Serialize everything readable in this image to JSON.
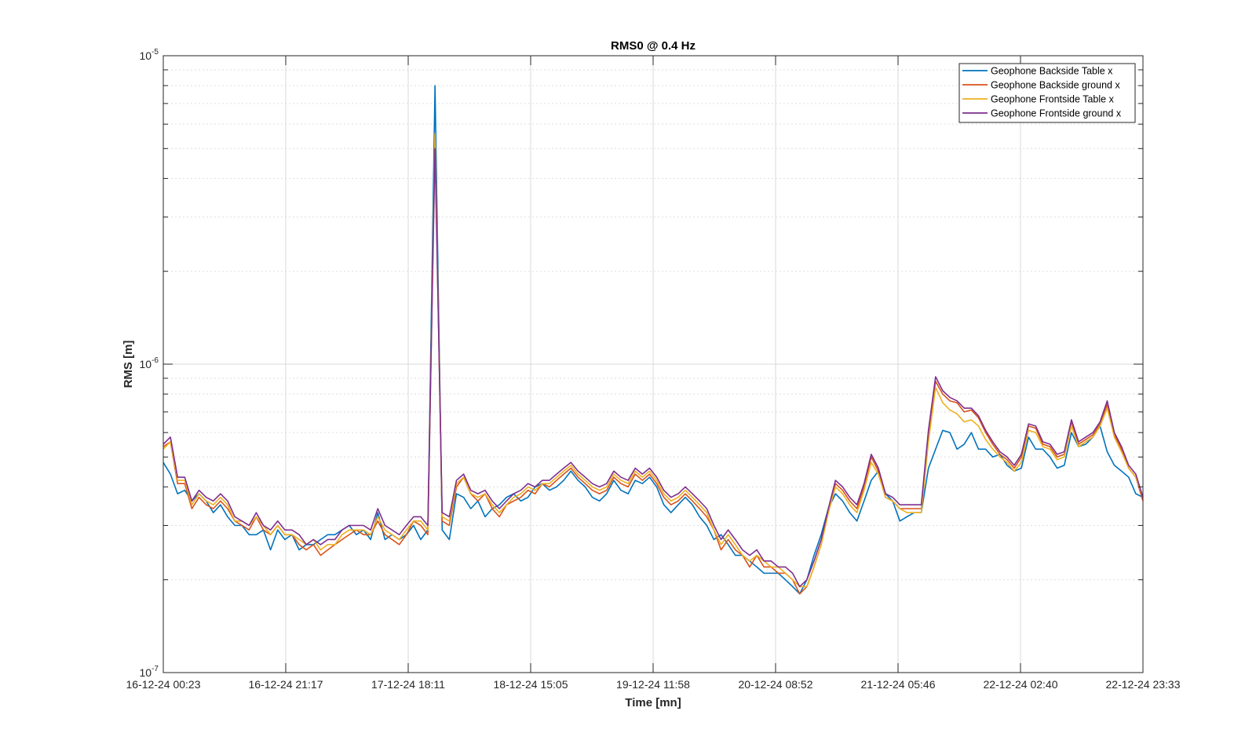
{
  "chart_data": {
    "type": "line",
    "title": "RMS0 @ 0.4 Hz",
    "xlabel": "Time [mn]",
    "ylabel": "RMS [m]",
    "yscale": "log",
    "ylim": [
      1e-07,
      1e-05
    ],
    "y_ticks": [
      {
        "value": 1e-07,
        "base": "10",
        "exp": "-7"
      },
      {
        "value": 1e-06,
        "base": "10",
        "exp": "-6"
      },
      {
        "value": 1e-05,
        "base": "10",
        "exp": "-5"
      }
    ],
    "x_ticks": [
      "16-12-24 00:23",
      "16-12-24 21:17",
      "17-12-24 18:11",
      "18-12-24 15:05",
      "19-12-24 11:58",
      "20-12-24 08:52",
      "21-12-24 05:46",
      "22-12-24 02:40",
      "22-12-24 23:33"
    ],
    "grid": true,
    "legend_position": "top-right",
    "series": [
      {
        "name": "Geophone Backside Table x",
        "color": "#0072BD",
        "values": [
          4.8e-07,
          4.4e-07,
          3.8e-07,
          3.9e-07,
          3.6e-07,
          3.8e-07,
          3.6e-07,
          3.3e-07,
          3.5e-07,
          3.2e-07,
          3e-07,
          3e-07,
          2.8e-07,
          2.8e-07,
          2.9e-07,
          2.5e-07,
          2.9e-07,
          2.7e-07,
          2.8e-07,
          2.5e-07,
          2.6e-07,
          2.6e-07,
          2.7e-07,
          2.8e-07,
          2.8e-07,
          2.9e-07,
          3e-07,
          2.8e-07,
          2.9e-07,
          2.7e-07,
          3.3e-07,
          2.7e-07,
          2.8e-07,
          2.7e-07,
          2.8e-07,
          3e-07,
          2.7e-07,
          2.9e-07,
          8e-06,
          2.9e-07,
          2.7e-07,
          3.8e-07,
          3.7e-07,
          3.4e-07,
          3.6e-07,
          3.2e-07,
          3.4e-07,
          3.5e-07,
          3.7e-07,
          3.8e-07,
          3.6e-07,
          3.7e-07,
          4e-07,
          4.1e-07,
          3.9e-07,
          4e-07,
          4.2e-07,
          4.5e-07,
          4.2e-07,
          4e-07,
          3.7e-07,
          3.6e-07,
          3.8e-07,
          4.2e-07,
          3.9e-07,
          3.8e-07,
          4.2e-07,
          4.1e-07,
          4.3e-07,
          4e-07,
          3.5e-07,
          3.3e-07,
          3.5e-07,
          3.7e-07,
          3.5e-07,
          3.2e-07,
          3e-07,
          2.7e-07,
          2.8e-07,
          2.6e-07,
          2.4e-07,
          2.4e-07,
          2.3e-07,
          2.2e-07,
          2.1e-07,
          2.1e-07,
          2.1e-07,
          2e-07,
          1.9e-07,
          1.8e-07,
          2e-07,
          2.4e-07,
          2.8e-07,
          3.4e-07,
          3.8e-07,
          3.6e-07,
          3.3e-07,
          3.1e-07,
          3.6e-07,
          4.2e-07,
          4.5e-07,
          3.8e-07,
          3.6e-07,
          3.1e-07,
          3.2e-07,
          3.3e-07,
          3.3e-07,
          4.6e-07,
          5.3e-07,
          6.1e-07,
          6e-07,
          5.3e-07,
          5.5e-07,
          6e-07,
          5.3e-07,
          5.3e-07,
          5e-07,
          5.1e-07,
          4.7e-07,
          4.5e-07,
          4.6e-07,
          5.8e-07,
          5.3e-07,
          5.3e-07,
          5e-07,
          4.6e-07,
          4.7e-07,
          6e-07,
          5.4e-07,
          5.5e-07,
          5.8e-07,
          6.3e-07,
          5.2e-07,
          4.7e-07,
          4.5e-07,
          4.3e-07,
          3.8e-07,
          3.7e-07
        ]
      },
      {
        "name": "Geophone Backside ground x",
        "color": "#D95319",
        "values": [
          5.4e-07,
          5.6e-07,
          4.1e-07,
          4.1e-07,
          3.4e-07,
          3.7e-07,
          3.5e-07,
          3.4e-07,
          3.6e-07,
          3.4e-07,
          3.1e-07,
          3e-07,
          2.9e-07,
          3.2e-07,
          2.9e-07,
          2.8e-07,
          3e-07,
          2.8e-07,
          2.8e-07,
          2.6e-07,
          2.5e-07,
          2.6e-07,
          2.4e-07,
          2.5e-07,
          2.6e-07,
          2.7e-07,
          2.8e-07,
          2.9e-07,
          2.8e-07,
          2.8e-07,
          3.1e-07,
          2.8e-07,
          2.7e-07,
          2.6e-07,
          2.8e-07,
          3.1e-07,
          3e-07,
          2.8e-07,
          5.5e-06,
          3.1e-07,
          3e-07,
          4e-07,
          4.3e-07,
          3.8e-07,
          3.6e-07,
          3.8e-07,
          3.4e-07,
          3.2e-07,
          3.5e-07,
          3.6e-07,
          3.7e-07,
          3.9e-07,
          3.8e-07,
          4.1e-07,
          4e-07,
          4.2e-07,
          4.4e-07,
          4.6e-07,
          4.3e-07,
          4.1e-07,
          3.9e-07,
          3.8e-07,
          3.9e-07,
          4.3e-07,
          4.1e-07,
          4e-07,
          4.4e-07,
          4.2e-07,
          4.4e-07,
          4.1e-07,
          3.7e-07,
          3.5e-07,
          3.6e-07,
          3.8e-07,
          3.6e-07,
          3.4e-07,
          3.2e-07,
          2.9e-07,
          2.5e-07,
          2.7e-07,
          2.5e-07,
          2.4e-07,
          2.2e-07,
          2.4e-07,
          2.2e-07,
          2.2e-07,
          2.1e-07,
          2.1e-07,
          2e-07,
          1.8e-07,
          1.9e-07,
          2.2e-07,
          2.6e-07,
          3.3e-07,
          4.1e-07,
          3.9e-07,
          3.6e-07,
          3.4e-07,
          4e-07,
          5e-07,
          4.5e-07,
          3.7e-07,
          3.6e-07,
          3.4e-07,
          3.4e-07,
          3.4e-07,
          3.4e-07,
          5.9e-07,
          8.8e-07,
          8e-07,
          7.6e-07,
          7.5e-07,
          7e-07,
          7.1e-07,
          6.7e-07,
          6e-07,
          5.5e-07,
          5.1e-07,
          4.9e-07,
          4.6e-07,
          5e-07,
          6.3e-07,
          6.2e-07,
          5.5e-07,
          5.4e-07,
          5e-07,
          5.1e-07,
          6.5e-07,
          5.5e-07,
          5.7e-07,
          5.9e-07,
          6.4e-07,
          7.4e-07,
          5.9e-07,
          5.3e-07,
          4.6e-07,
          4.3e-07,
          3.6e-07
        ]
      },
      {
        "name": "Geophone Frontside Table x",
        "color": "#EDB120",
        "values": [
          5.3e-07,
          5.6e-07,
          4.2e-07,
          4.2e-07,
          3.5e-07,
          3.8e-07,
          3.6e-07,
          3.5e-07,
          3.7e-07,
          3.5e-07,
          3.1e-07,
          3.1e-07,
          3e-07,
          3.2e-07,
          3e-07,
          2.8e-07,
          3e-07,
          2.8e-07,
          2.8e-07,
          2.7e-07,
          2.6e-07,
          2.7e-07,
          2.5e-07,
          2.6e-07,
          2.6e-07,
          2.8e-07,
          2.9e-07,
          2.9e-07,
          2.9e-07,
          2.8e-07,
          3.2e-07,
          2.9e-07,
          2.8e-07,
          2.7e-07,
          2.9e-07,
          3.1e-07,
          3.1e-07,
          2.9e-07,
          5.6e-06,
          3.2e-07,
          3.1e-07,
          4.1e-07,
          4.3e-07,
          3.8e-07,
          3.7e-07,
          3.8e-07,
          3.5e-07,
          3.3e-07,
          3.5e-07,
          3.7e-07,
          3.8e-07,
          4e-07,
          3.9e-07,
          4.1e-07,
          4.1e-07,
          4.3e-07,
          4.5e-07,
          4.7e-07,
          4.4e-07,
          4.2e-07,
          4e-07,
          3.9e-07,
          4e-07,
          4.4e-07,
          4.2e-07,
          4.1e-07,
          4.5e-07,
          4.3e-07,
          4.5e-07,
          4.2e-07,
          3.8e-07,
          3.6e-07,
          3.7e-07,
          3.9e-07,
          3.7e-07,
          3.5e-07,
          3.3e-07,
          2.9e-07,
          2.6e-07,
          2.8e-07,
          2.6e-07,
          2.4e-07,
          2.3e-07,
          2.4e-07,
          2.3e-07,
          2.2e-07,
          2.2e-07,
          2.1e-07,
          2e-07,
          1.9e-07,
          1.9e-07,
          2.2e-07,
          2.6e-07,
          3.3e-07,
          4e-07,
          3.8e-07,
          3.5e-07,
          3.3e-07,
          3.9e-07,
          4.8e-07,
          4.4e-07,
          3.7e-07,
          3.6e-07,
          3.4e-07,
          3.3e-07,
          3.3e-07,
          3.3e-07,
          5.6e-07,
          8.4e-07,
          7.5e-07,
          7.1e-07,
          6.9e-07,
          6.5e-07,
          6.6e-07,
          6.3e-07,
          5.7e-07,
          5.3e-07,
          5e-07,
          4.8e-07,
          4.5e-07,
          4.8e-07,
          6.1e-07,
          6e-07,
          5.4e-07,
          5.3e-07,
          4.9e-07,
          5e-07,
          6.3e-07,
          5.4e-07,
          5.6e-07,
          5.8e-07,
          6.3e-07,
          7.2e-07,
          5.8e-07,
          5.2e-07,
          4.6e-07,
          4.3e-07,
          3.7e-07
        ]
      },
      {
        "name": "Geophone Frontside ground x",
        "color": "#7E2F8E",
        "values": [
          5.5e-07,
          5.8e-07,
          4.3e-07,
          4.3e-07,
          3.6e-07,
          3.9e-07,
          3.7e-07,
          3.6e-07,
          3.8e-07,
          3.6e-07,
          3.2e-07,
          3.1e-07,
          3e-07,
          3.3e-07,
          3e-07,
          2.9e-07,
          3.1e-07,
          2.9e-07,
          2.9e-07,
          2.8e-07,
          2.6e-07,
          2.7e-07,
          2.6e-07,
          2.7e-07,
          2.7e-07,
          2.9e-07,
          3e-07,
          3e-07,
          3e-07,
          2.9e-07,
          3.4e-07,
          3e-07,
          2.9e-07,
          2.8e-07,
          3e-07,
          3.2e-07,
          3.2e-07,
          3e-07,
          5e-06,
          3.3e-07,
          3.2e-07,
          4.2e-07,
          4.4e-07,
          3.9e-07,
          3.8e-07,
          3.9e-07,
          3.6e-07,
          3.4e-07,
          3.6e-07,
          3.8e-07,
          3.9e-07,
          4.1e-07,
          4e-07,
          4.2e-07,
          4.2e-07,
          4.4e-07,
          4.6e-07,
          4.8e-07,
          4.5e-07,
          4.3e-07,
          4.1e-07,
          4e-07,
          4.1e-07,
          4.5e-07,
          4.3e-07,
          4.2e-07,
          4.6e-07,
          4.4e-07,
          4.6e-07,
          4.3e-07,
          3.9e-07,
          3.7e-07,
          3.8e-07,
          4e-07,
          3.8e-07,
          3.6e-07,
          3.4e-07,
          3e-07,
          2.7e-07,
          2.9e-07,
          2.7e-07,
          2.5e-07,
          2.4e-07,
          2.5e-07,
          2.3e-07,
          2.3e-07,
          2.2e-07,
          2.2e-07,
          2.1e-07,
          1.9e-07,
          2e-07,
          2.3e-07,
          2.7e-07,
          3.4e-07,
          4.2e-07,
          4e-07,
          3.7e-07,
          3.5e-07,
          4.1e-07,
          5.1e-07,
          4.6e-07,
          3.8e-07,
          3.7e-07,
          3.5e-07,
          3.5e-07,
          3.5e-07,
          3.5e-07,
          6.1e-07,
          9.1e-07,
          8.2e-07,
          7.8e-07,
          7.6e-07,
          7.2e-07,
          7.2e-07,
          6.8e-07,
          6.1e-07,
          5.6e-07,
          5.2e-07,
          5e-07,
          4.7e-07,
          5.1e-07,
          6.4e-07,
          6.3e-07,
          5.6e-07,
          5.5e-07,
          5.1e-07,
          5.2e-07,
          6.6e-07,
          5.6e-07,
          5.8e-07,
          6e-07,
          6.5e-07,
          7.6e-07,
          6e-07,
          5.4e-07,
          4.7e-07,
          4.4e-07,
          3.7e-07
        ]
      }
    ]
  }
}
